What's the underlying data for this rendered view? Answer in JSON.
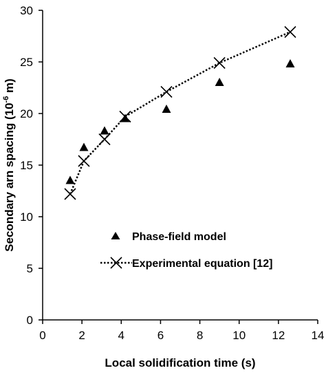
{
  "chart_data": {
    "type": "scatter",
    "xlabel": "Local solidification time (s)",
    "ylabel_main": "Secondary arn spacing (10",
    "ylabel_exp": "-6",
    "ylabel_unit": " m)",
    "xlim": [
      0,
      14
    ],
    "ylim": [
      0,
      30
    ],
    "x_ticks": [
      0,
      2,
      4,
      6,
      8,
      10,
      12,
      14
    ],
    "y_ticks": [
      0,
      5,
      10,
      15,
      20,
      25,
      30
    ],
    "grid": false,
    "legend_position": "lower-center",
    "series": [
      {
        "name": "Phase-field model",
        "marker": "triangle",
        "line": "none",
        "points": [
          {
            "x": 1.4,
            "y": 13.5
          },
          {
            "x": 2.1,
            "y": 16.7
          },
          {
            "x": 3.15,
            "y": 18.3
          },
          {
            "x": 4.2,
            "y": 19.5
          },
          {
            "x": 6.3,
            "y": 20.4
          },
          {
            "x": 9.0,
            "y": 23.0
          },
          {
            "x": 12.6,
            "y": 24.8
          }
        ]
      },
      {
        "name": "Experimental equation [12]",
        "marker": "x",
        "line": "dotted",
        "points": [
          {
            "x": 1.4,
            "y": 12.2
          },
          {
            "x": 2.1,
            "y": 15.4
          },
          {
            "x": 3.15,
            "y": 17.5
          },
          {
            "x": 4.2,
            "y": 19.7
          },
          {
            "x": 6.3,
            "y": 22.1
          },
          {
            "x": 9.0,
            "y": 24.9
          },
          {
            "x": 12.6,
            "y": 27.9
          }
        ]
      }
    ]
  }
}
